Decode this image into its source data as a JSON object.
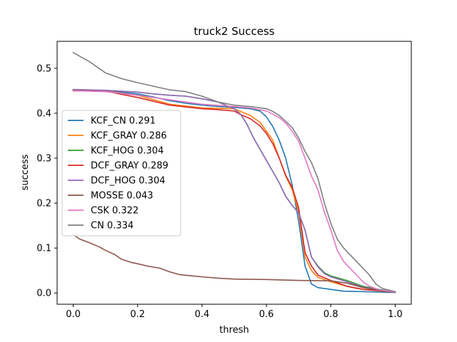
{
  "chart_data": {
    "type": "line",
    "title": "truck2 Success",
    "xlabel": "thresh",
    "ylabel": "success",
    "xlim": [
      -0.05,
      1.05
    ],
    "ylim": [
      -0.025,
      0.56
    ],
    "xticks": [
      0.0,
      0.2,
      0.4,
      0.6,
      0.8,
      1.0
    ],
    "xtick_labels": [
      "0.0",
      "0.2",
      "0.4",
      "0.6",
      "0.8",
      "1.0"
    ],
    "yticks": [
      0.0,
      0.1,
      0.2,
      0.3,
      0.4,
      0.5
    ],
    "ytick_labels": [
      "0.0",
      "0.1",
      "0.2",
      "0.3",
      "0.4",
      "0.5"
    ],
    "grid": false,
    "legend_position": "center-left",
    "series": [
      {
        "name": "KCF_CN 0.291",
        "color": "#1f77b4",
        "points": [
          [
            0.0,
            0.452
          ],
          [
            0.1,
            0.45
          ],
          [
            0.2,
            0.443
          ],
          [
            0.25,
            0.436
          ],
          [
            0.3,
            0.428
          ],
          [
            0.35,
            0.422
          ],
          [
            0.4,
            0.418
          ],
          [
            0.45,
            0.415
          ],
          [
            0.5,
            0.413
          ],
          [
            0.55,
            0.41
          ],
          [
            0.58,
            0.405
          ],
          [
            0.6,
            0.392
          ],
          [
            0.62,
            0.37
          ],
          [
            0.64,
            0.34
          ],
          [
            0.66,
            0.3
          ],
          [
            0.68,
            0.24
          ],
          [
            0.7,
            0.16
          ],
          [
            0.72,
            0.06
          ],
          [
            0.74,
            0.02
          ],
          [
            0.76,
            0.012
          ],
          [
            0.8,
            0.008
          ],
          [
            0.84,
            0.004
          ],
          [
            0.9,
            0.003
          ],
          [
            1.0,
            0.001
          ]
        ]
      },
      {
        "name": "KCF_GRAY 0.286",
        "color": "#ff7f0e",
        "points": [
          [
            0.0,
            0.45
          ],
          [
            0.1,
            0.449
          ],
          [
            0.2,
            0.44
          ],
          [
            0.3,
            0.42
          ],
          [
            0.4,
            0.412
          ],
          [
            0.5,
            0.41
          ],
          [
            0.55,
            0.395
          ],
          [
            0.58,
            0.38
          ],
          [
            0.6,
            0.36
          ],
          [
            0.62,
            0.34
          ],
          [
            0.64,
            0.3
          ],
          [
            0.66,
            0.26
          ],
          [
            0.68,
            0.23
          ],
          [
            0.7,
            0.18
          ],
          [
            0.72,
            0.08
          ],
          [
            0.74,
            0.05
          ],
          [
            0.76,
            0.035
          ],
          [
            0.8,
            0.025
          ],
          [
            0.85,
            0.015
          ],
          [
            0.9,
            0.008
          ],
          [
            0.95,
            0.005
          ],
          [
            1.0,
            0.002
          ]
        ]
      },
      {
        "name": "KCF_HOG 0.304",
        "color": "#2ca02c",
        "points": [
          [
            0.0,
            0.452
          ],
          [
            0.1,
            0.451
          ],
          [
            0.2,
            0.447
          ],
          [
            0.25,
            0.443
          ],
          [
            0.3,
            0.44
          ],
          [
            0.35,
            0.438
          ],
          [
            0.4,
            0.432
          ],
          [
            0.45,
            0.425
          ],
          [
            0.5,
            0.41
          ],
          [
            0.52,
            0.398
          ],
          [
            0.54,
            0.375
          ],
          [
            0.56,
            0.345
          ],
          [
            0.58,
            0.32
          ],
          [
            0.6,
            0.295
          ],
          [
            0.62,
            0.27
          ],
          [
            0.64,
            0.245
          ],
          [
            0.66,
            0.215
          ],
          [
            0.68,
            0.195
          ],
          [
            0.7,
            0.178
          ],
          [
            0.72,
            0.14
          ],
          [
            0.74,
            0.08
          ],
          [
            0.76,
            0.06
          ],
          [
            0.78,
            0.045
          ],
          [
            0.8,
            0.038
          ],
          [
            0.85,
            0.028
          ],
          [
            0.9,
            0.015
          ],
          [
            0.95,
            0.008
          ],
          [
            1.0,
            0.002
          ]
        ]
      },
      {
        "name": "DCF_GRAY 0.289",
        "color": "#d62728",
        "points": [
          [
            0.0,
            0.45
          ],
          [
            0.1,
            0.449
          ],
          [
            0.2,
            0.435
          ],
          [
            0.3,
            0.418
          ],
          [
            0.4,
            0.41
          ],
          [
            0.45,
            0.408
          ],
          [
            0.5,
            0.405
          ],
          [
            0.52,
            0.397
          ],
          [
            0.55,
            0.388
          ],
          [
            0.58,
            0.372
          ],
          [
            0.6,
            0.355
          ],
          [
            0.62,
            0.332
          ],
          [
            0.64,
            0.3
          ],
          [
            0.66,
            0.262
          ],
          [
            0.68,
            0.235
          ],
          [
            0.7,
            0.19
          ],
          [
            0.72,
            0.09
          ],
          [
            0.74,
            0.06
          ],
          [
            0.76,
            0.04
          ],
          [
            0.8,
            0.028
          ],
          [
            0.85,
            0.015
          ],
          [
            0.9,
            0.008
          ],
          [
            0.95,
            0.005
          ],
          [
            1.0,
            0.002
          ]
        ]
      },
      {
        "name": "DCF_HOG 0.304",
        "color": "#9467bd",
        "points": [
          [
            0.0,
            0.453
          ],
          [
            0.1,
            0.451
          ],
          [
            0.2,
            0.447
          ],
          [
            0.25,
            0.443
          ],
          [
            0.3,
            0.44
          ],
          [
            0.35,
            0.438
          ],
          [
            0.4,
            0.432
          ],
          [
            0.45,
            0.425
          ],
          [
            0.5,
            0.41
          ],
          [
            0.52,
            0.398
          ],
          [
            0.54,
            0.375
          ],
          [
            0.56,
            0.345
          ],
          [
            0.58,
            0.32
          ],
          [
            0.6,
            0.295
          ],
          [
            0.62,
            0.27
          ],
          [
            0.64,
            0.245
          ],
          [
            0.66,
            0.215
          ],
          [
            0.68,
            0.195
          ],
          [
            0.7,
            0.178
          ],
          [
            0.72,
            0.14
          ],
          [
            0.74,
            0.08
          ],
          [
            0.76,
            0.058
          ],
          [
            0.78,
            0.043
          ],
          [
            0.8,
            0.036
          ],
          [
            0.85,
            0.025
          ],
          [
            0.9,
            0.013
          ],
          [
            0.95,
            0.007
          ],
          [
            1.0,
            0.002
          ]
        ]
      },
      {
        "name": "MOSSE 0.043",
        "color": "#8c564b",
        "points": [
          [
            0.0,
            0.13
          ],
          [
            0.02,
            0.12
          ],
          [
            0.05,
            0.112
          ],
          [
            0.08,
            0.103
          ],
          [
            0.1,
            0.095
          ],
          [
            0.13,
            0.085
          ],
          [
            0.15,
            0.075
          ],
          [
            0.18,
            0.068
          ],
          [
            0.2,
            0.065
          ],
          [
            0.23,
            0.06
          ],
          [
            0.27,
            0.055
          ],
          [
            0.3,
            0.047
          ],
          [
            0.33,
            0.041
          ],
          [
            0.37,
            0.038
          ],
          [
            0.4,
            0.036
          ],
          [
            0.45,
            0.033
          ],
          [
            0.5,
            0.031
          ],
          [
            0.6,
            0.03
          ],
          [
            0.7,
            0.028
          ],
          [
            0.8,
            0.027
          ],
          [
            0.85,
            0.022
          ],
          [
            0.9,
            0.012
          ],
          [
            0.95,
            0.006
          ],
          [
            1.0,
            0.002
          ]
        ]
      },
      {
        "name": "CSK 0.322",
        "color": "#e377c2",
        "points": [
          [
            0.0,
            0.45
          ],
          [
            0.1,
            0.448
          ],
          [
            0.2,
            0.44
          ],
          [
            0.3,
            0.43
          ],
          [
            0.4,
            0.42
          ],
          [
            0.5,
            0.415
          ],
          [
            0.55,
            0.412
          ],
          [
            0.6,
            0.405
          ],
          [
            0.62,
            0.398
          ],
          [
            0.64,
            0.39
          ],
          [
            0.66,
            0.378
          ],
          [
            0.68,
            0.36
          ],
          [
            0.7,
            0.338
          ],
          [
            0.72,
            0.3
          ],
          [
            0.74,
            0.26
          ],
          [
            0.76,
            0.23
          ],
          [
            0.78,
            0.18
          ],
          [
            0.8,
            0.14
          ],
          [
            0.82,
            0.095
          ],
          [
            0.84,
            0.07
          ],
          [
            0.86,
            0.055
          ],
          [
            0.88,
            0.04
          ],
          [
            0.9,
            0.025
          ],
          [
            0.92,
            0.015
          ],
          [
            0.95,
            0.007
          ],
          [
            1.0,
            0.002
          ]
        ]
      },
      {
        "name": "CN 0.334",
        "color": "#7f7f7f",
        "points": [
          [
            0.0,
            0.535
          ],
          [
            0.05,
            0.515
          ],
          [
            0.1,
            0.49
          ],
          [
            0.15,
            0.477
          ],
          [
            0.2,
            0.468
          ],
          [
            0.25,
            0.46
          ],
          [
            0.3,
            0.452
          ],
          [
            0.35,
            0.448
          ],
          [
            0.4,
            0.438
          ],
          [
            0.45,
            0.425
          ],
          [
            0.5,
            0.418
          ],
          [
            0.55,
            0.415
          ],
          [
            0.6,
            0.41
          ],
          [
            0.62,
            0.404
          ],
          [
            0.64,
            0.395
          ],
          [
            0.66,
            0.382
          ],
          [
            0.68,
            0.368
          ],
          [
            0.7,
            0.345
          ],
          [
            0.72,
            0.315
          ],
          [
            0.74,
            0.29
          ],
          [
            0.76,
            0.255
          ],
          [
            0.78,
            0.2
          ],
          [
            0.8,
            0.155
          ],
          [
            0.82,
            0.12
          ],
          [
            0.84,
            0.1
          ],
          [
            0.86,
            0.085
          ],
          [
            0.88,
            0.07
          ],
          [
            0.9,
            0.055
          ],
          [
            0.92,
            0.04
          ],
          [
            0.94,
            0.02
          ],
          [
            0.96,
            0.01
          ],
          [
            1.0,
            0.003
          ]
        ]
      }
    ]
  }
}
